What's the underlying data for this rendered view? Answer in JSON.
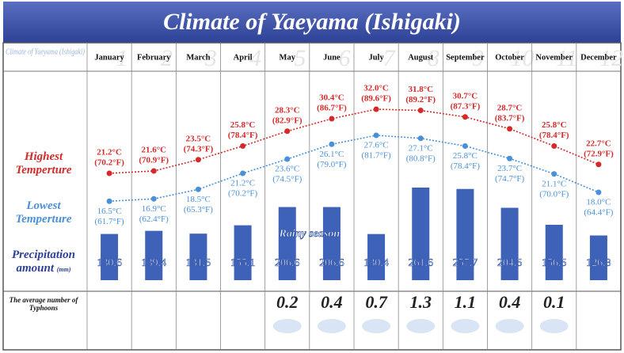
{
  "chart_data": [
    {
      "type": "line",
      "title": "Climate of Yaeyama (Ishigaki)",
      "categories": [
        "January",
        "February",
        "March",
        "April",
        "May",
        "June",
        "July",
        "August",
        "September",
        "October",
        "November",
        "December"
      ],
      "month_numbers": [
        "1",
        "2",
        "3",
        "4",
        "5",
        "6",
        "7",
        "8",
        "9",
        "10",
        "11",
        "12"
      ],
      "series": [
        {
          "name": "Highest Temperture",
          "color": "#d42a2a",
          "values": [
            21.2,
            21.6,
            23.5,
            25.8,
            28.3,
            30.4,
            32.0,
            31.8,
            30.7,
            28.7,
            25.8,
            22.7
          ],
          "value_labels": [
            "21.2°C",
            "21.6°C",
            "23.5°C",
            "25.8°C",
            "28.3°C",
            "30.4°C",
            "32.0°C",
            "31.8°C",
            "30.7°C",
            "28.7°C",
            "25.8°C",
            "22.7°C"
          ],
          "secondary_labels": [
            "(70.2°F)",
            "(70.9°F)",
            "(74.3°F)",
            "(78.4°F)",
            "(82.9°F)",
            "(86.7°F)",
            "(89.6°F)",
            "(89.2°F)",
            "(87.3°F)",
            "(83.7°F)",
            "(78.4°F)",
            "(72.9°F)"
          ]
        },
        {
          "name": "Lowest Temperture",
          "color": "#4a90d9",
          "values": [
            16.5,
            16.9,
            18.5,
            21.2,
            23.6,
            26.1,
            27.6,
            27.1,
            25.8,
            23.7,
            21.1,
            18.0
          ],
          "value_labels": [
            "16.5°C",
            "16.9°C",
            "18.5°C",
            "21.2°C",
            "23.6°C",
            "26.1°C",
            "27.6°C",
            "27.1°C",
            "25.8°C",
            "23.7°C",
            "21.1°C",
            "18.0°C"
          ],
          "secondary_labels": [
            "(61.7°F)",
            "(62.4°F)",
            "(65.3°F)",
            "(70.2°F)",
            "(74.5°F)",
            "(79.0°F)",
            "(81.7°F)",
            "(80.8°F)",
            "(78.4°F)",
            "(74.7°F)",
            "(70.0°F)",
            "(64.4°F)"
          ]
        }
      ]
    },
    {
      "type": "bar",
      "series": [
        {
          "name": "Precipitation amount",
          "unit": "(mm)",
          "color": "#3d62b8",
          "values": [
            130.6,
            139.4,
            131.5,
            155.1,
            206.6,
            206.6,
            130.4,
            261.6,
            257.7,
            204.5,
            156.5,
            126.3
          ]
        }
      ],
      "annotation": "Rainy season"
    },
    {
      "type": "text",
      "label": "The average number of Typhoons",
      "values": [
        null,
        null,
        null,
        null,
        0.2,
        0.4,
        0.7,
        1.3,
        1.1,
        0.4,
        0.1,
        null
      ]
    }
  ]
}
